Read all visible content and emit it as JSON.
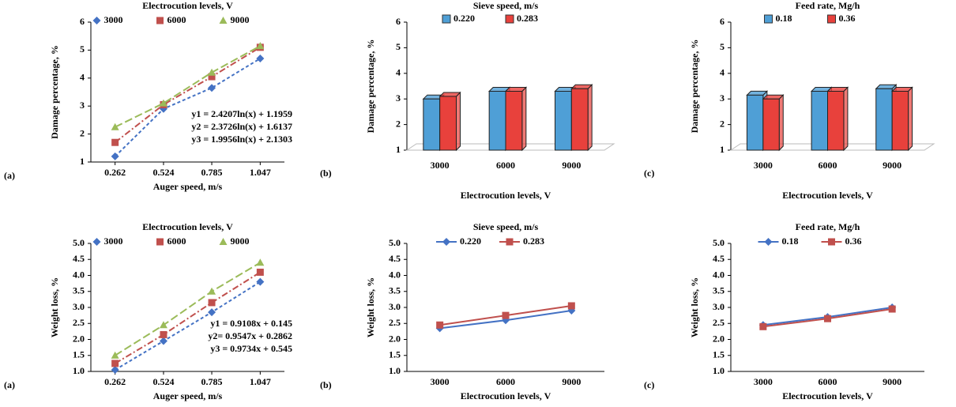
{
  "chart_data": [
    {
      "type": "scatter",
      "title": "Electrocution levels, V",
      "panel_label": "(a)",
      "ylabel": "Damage percentage, %",
      "xlabel": "Auger speed, m/s",
      "x": [
        0.262,
        0.524,
        0.785,
        1.047
      ],
      "xlim": [
        0.131,
        1.178
      ],
      "xticks": [
        0.262,
        0.524,
        0.785,
        1.047
      ],
      "ylim": [
        1,
        6
      ],
      "yticks": [
        1,
        2,
        3,
        4,
        5,
        6
      ],
      "series": [
        {
          "name": "3000",
          "color": "#4472c4",
          "values": [
            1.2,
            2.9,
            3.65,
            4.7
          ]
        },
        {
          "name": "6000",
          "color": "#c0504d",
          "values": [
            1.7,
            3.05,
            4.05,
            5.1
          ]
        },
        {
          "name": "9000",
          "color": "#9bbb59",
          "values": [
            2.25,
            3.1,
            4.2,
            5.15
          ]
        }
      ],
      "annotations": [
        "y1 = 2.4207ln(x) + 1.1959",
        "y2 = 2.3726ln(x) + 1.6137",
        "y3 = 1.9956ln(x) + 2.1303"
      ]
    },
    {
      "type": "bar",
      "title": "Sieve speed, m/s",
      "panel_label": "(b)",
      "ylabel": "Damage percentage, %",
      "xlabel": "Electrocution levels, V",
      "categories": [
        "3000",
        "6000",
        "9000"
      ],
      "ylim": [
        1,
        6
      ],
      "yticks": [
        1,
        2,
        3,
        4,
        5,
        6
      ],
      "series": [
        {
          "name": "0.220",
          "color": "#4f9fd6",
          "values": [
            3.0,
            3.3,
            3.3
          ]
        },
        {
          "name": "0.283",
          "color": "#e8413c",
          "values": [
            3.1,
            3.3,
            3.4
          ]
        }
      ]
    },
    {
      "type": "bar",
      "title": "Feed rate, Mg/h",
      "panel_label": "(c)",
      "ylabel": "Damage percentage, %",
      "xlabel": "Electrocution levels, V",
      "categories": [
        "3000",
        "6000",
        "9000"
      ],
      "ylim": [
        1,
        6
      ],
      "yticks": [
        1,
        2,
        3,
        4,
        5,
        6
      ],
      "series": [
        {
          "name": "0.18",
          "color": "#4f9fd6",
          "values": [
            3.15,
            3.3,
            3.4
          ]
        },
        {
          "name": "0.36",
          "color": "#e8413c",
          "values": [
            3.0,
            3.3,
            3.3
          ]
        }
      ]
    },
    {
      "type": "scatter",
      "title": "Electrocution levels, V",
      "panel_label": "(a)",
      "ylabel": "Weight loss, %",
      "xlabel": "Auger speed, m/s",
      "x": [
        0.262,
        0.524,
        0.785,
        1.047
      ],
      "xlim": [
        0.131,
        1.178
      ],
      "xticks": [
        0.262,
        0.524,
        0.785,
        1.047
      ],
      "ylim": [
        1,
        5
      ],
      "yticks": [
        {
          "value": 1,
          "label": "1.0"
        },
        1.5,
        {
          "value": 2,
          "label": "2.0"
        },
        2.5,
        {
          "value": 3,
          "label": "3.0"
        },
        3.5,
        {
          "value": 4,
          "label": "4.0"
        },
        4.5,
        {
          "value": 5,
          "label": "5.0"
        }
      ],
      "series": [
        {
          "name": "3000",
          "color": "#4472c4",
          "values": [
            1.05,
            1.95,
            2.85,
            3.8
          ]
        },
        {
          "name": "6000",
          "color": "#c0504d",
          "values": [
            1.25,
            2.15,
            3.15,
            4.1
          ]
        },
        {
          "name": "9000",
          "color": "#9bbb59",
          "values": [
            1.5,
            2.45,
            3.5,
            4.4
          ]
        }
      ],
      "annotations": [
        "y1 = 0.9108x + 0.145",
        "y2= 0.9547x + 0.2862",
        "y3 = 0.9734x + 0.545"
      ]
    },
    {
      "type": "line",
      "title": "Sieve speed, m/s",
      "panel_label": "(b)",
      "ylabel": "Weight loss, %",
      "xlabel": "Electrocution levels, V",
      "categories": [
        "3000",
        "6000",
        "9000"
      ],
      "ylim": [
        1,
        5
      ],
      "yticks": [
        {
          "value": 1,
          "label": "1.0"
        },
        1.5,
        {
          "value": 2,
          "label": "2.0"
        },
        2.5,
        {
          "value": 3,
          "label": "3.0"
        },
        3.5,
        {
          "value": 4,
          "label": "4.0"
        },
        4.5,
        {
          "value": 5,
          "label": "5.0"
        }
      ],
      "series": [
        {
          "name": "0.220",
          "color": "#4472c4",
          "values": [
            2.35,
            2.6,
            2.9
          ]
        },
        {
          "name": "0.283",
          "color": "#c0504d",
          "values": [
            2.45,
            2.75,
            3.05
          ]
        }
      ]
    },
    {
      "type": "line",
      "title": "Feed rate, Mg/h",
      "panel_label": "(c)",
      "ylabel": "Weight loss, %",
      "xlabel": "Electrocution levels, V",
      "categories": [
        "3000",
        "6000",
        "9000"
      ],
      "ylim": [
        1,
        5
      ],
      "yticks": [
        {
          "value": 1,
          "label": "1.0"
        },
        1.5,
        {
          "value": 2,
          "label": "2.0"
        },
        2.5,
        {
          "value": 3,
          "label": "3.0"
        },
        3.5,
        {
          "value": 4,
          "label": "4.0"
        },
        4.5,
        {
          "value": 5,
          "label": "5.0"
        }
      ],
      "series": [
        {
          "name": "0.18",
          "color": "#4472c4",
          "values": [
            2.45,
            2.7,
            3.0
          ]
        },
        {
          "name": "0.36",
          "color": "#c0504d",
          "values": [
            2.4,
            2.65,
            2.95
          ]
        }
      ]
    }
  ]
}
